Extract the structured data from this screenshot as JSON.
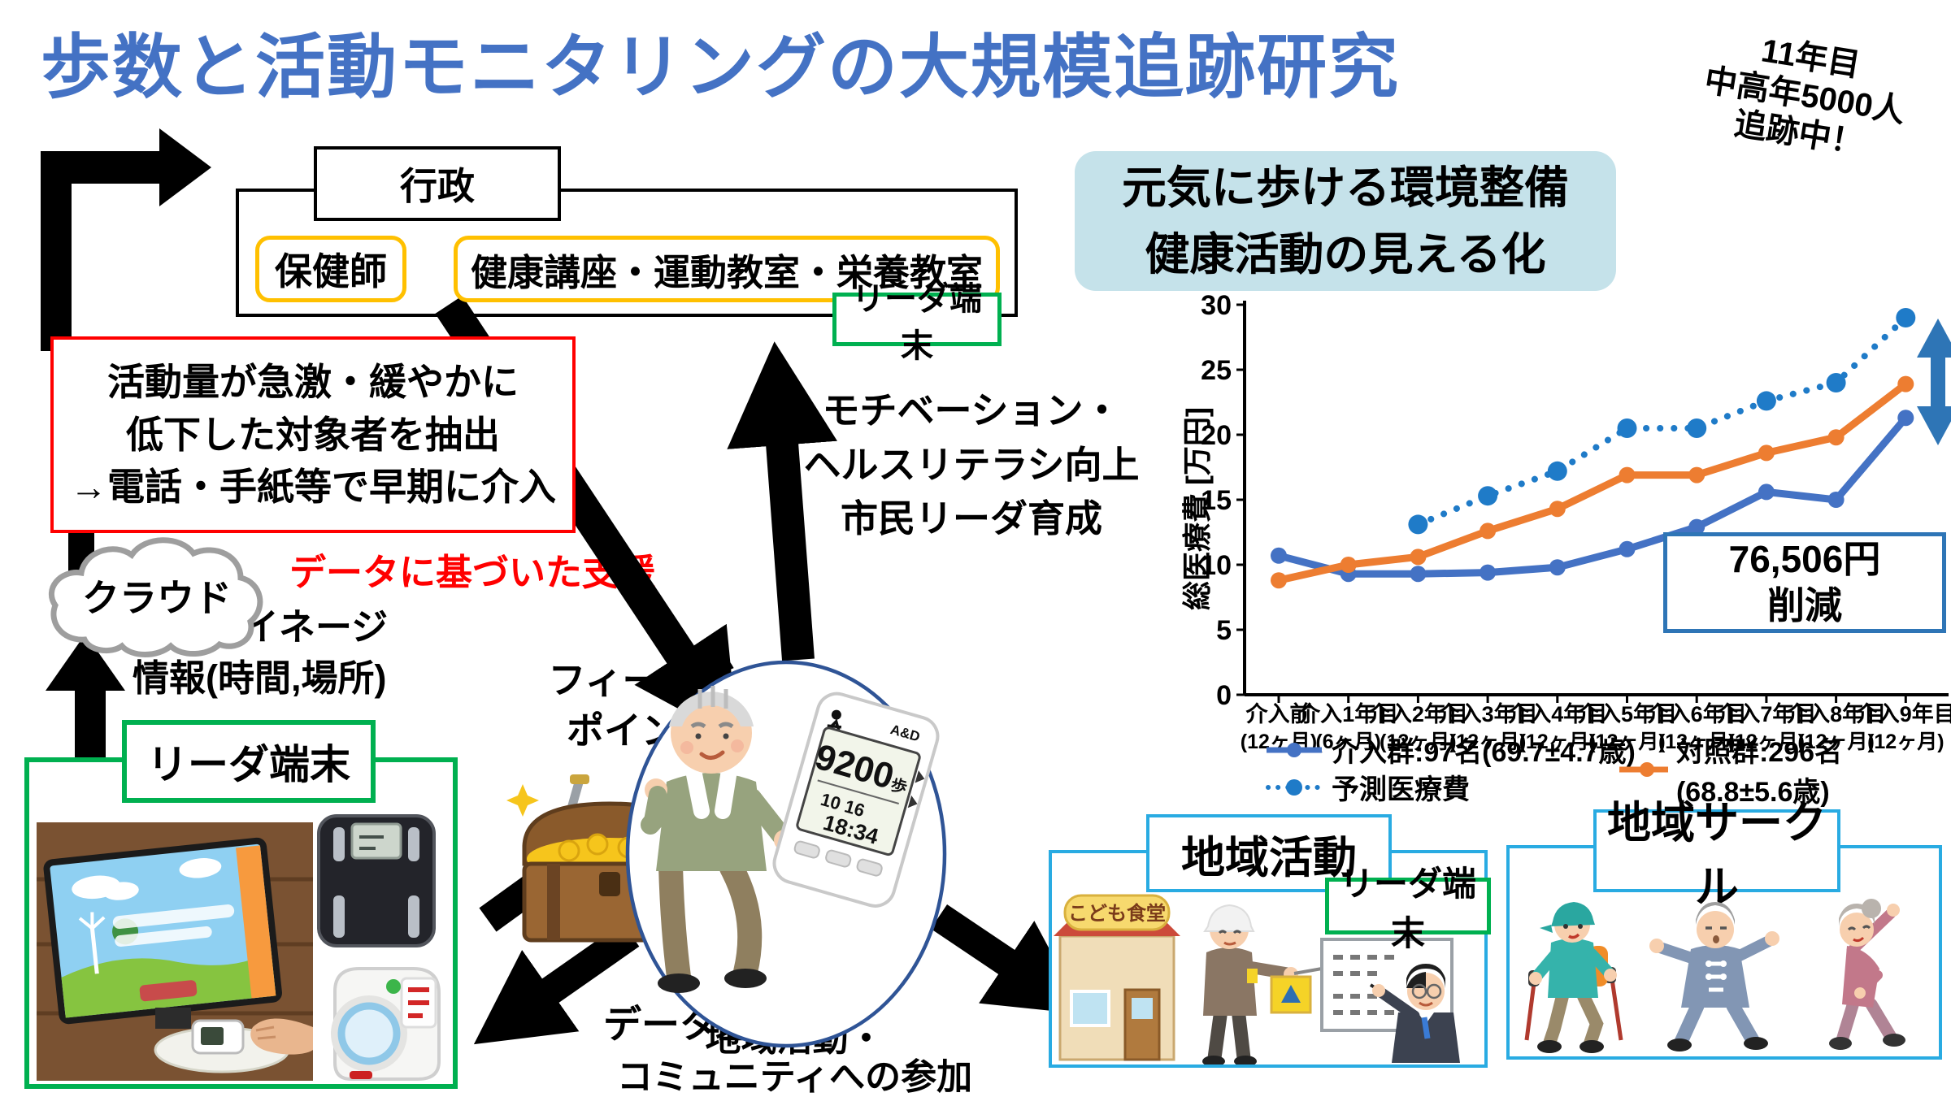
{
  "title": "歩数と活動モニタリングの大規模追跡研究",
  "badge": {
    "line1": "11年目",
    "line2": "中高年5000人",
    "line3": "追跡中！"
  },
  "flow": {
    "gyousei": "行政",
    "hokenshi": "保健師",
    "kouza": "健康講座・運動教室・栄養教室",
    "reader_terminal_top": "リーダ端末",
    "extract_box": {
      "line1": "活動量が急激・緩やかに",
      "line2": "低下した対象者を抽出",
      "line3": "→電話・手紙等で早期に介入"
    },
    "data_support": "データに基づいた支援",
    "cloud": "クラウド",
    "signage": {
      "line1": "登録サイネージ",
      "line2": "情報(時間,場所)"
    },
    "reader_terminal_left": "リーダ端末",
    "feedback": {
      "line1": "フィードバック",
      "line2": "ポイント付与"
    },
    "motivation": {
      "line1": "モチベーション・",
      "line2": "ヘルスリテラシ向上",
      "line3": "市民リーダ育成"
    },
    "env_box": {
      "line1": "元気に歩ける環境整備",
      "line2": "健康活動の見える化"
    },
    "data_register": "データ登録",
    "participation": {
      "line1": "地域活動・",
      "line2": "コミュニティへの参加"
    }
  },
  "pedometer": {
    "brand": "A&D",
    "steps": "9200",
    "unit": "歩",
    "date": "10 16",
    "time": "18:34"
  },
  "community": {
    "chiiki_katsudou": "地域活動",
    "reader_terminal": "リーダ端末",
    "kodomo_shokudou": "こども食堂",
    "chiiki_circle": "地域サークル"
  },
  "chart_data": {
    "type": "line",
    "ylabel": "総医療費 [万円]",
    "ylim": [
      0,
      30
    ],
    "yticks": [
      0,
      5,
      10,
      15,
      20,
      25,
      30
    ],
    "categories_line1": [
      "介入前",
      "介入1年目",
      "介入2年目",
      "介入3年目",
      "介入4年目",
      "介入5年目",
      "介入6年目",
      "介入7年目",
      "介入8年目",
      "介入9年目"
    ],
    "categories_line2": [
      "(12ヶ月)",
      "(6ヶ月)",
      "(12ヶ月)",
      "(12ヶ月)",
      "(12ヶ月)",
      "(12ヶ月)",
      "(12ヶ月)",
      "(12ヶ月)",
      "(12ヶ月)",
      "(12ヶ月)"
    ],
    "series": [
      {
        "name": "介入群:97名(69.7±4.7歳)",
        "color": "#4472C4",
        "style": "solid",
        "values": [
          10.7,
          9.3,
          9.3,
          9.4,
          9.8,
          11.2,
          12.9,
          15.6,
          15.0,
          21.3
        ]
      },
      {
        "name": "対照群:296名(68.8±5.6歳)",
        "color": "#ED7D31",
        "style": "solid",
        "values": [
          8.8,
          10.0,
          10.6,
          12.6,
          14.3,
          16.9,
          16.9,
          18.6,
          19.8,
          23.9
        ]
      },
      {
        "name": "予測医療費",
        "color": "#1F7BC8",
        "style": "dotted",
        "values": [
          null,
          null,
          13.1,
          15.3,
          17.2,
          20.5,
          20.5,
          22.6,
          24.0,
          29.0
        ]
      }
    ],
    "annotation": {
      "line1": "76,506円",
      "line2": "削減"
    },
    "legend_position": "bottom",
    "grid": false
  }
}
